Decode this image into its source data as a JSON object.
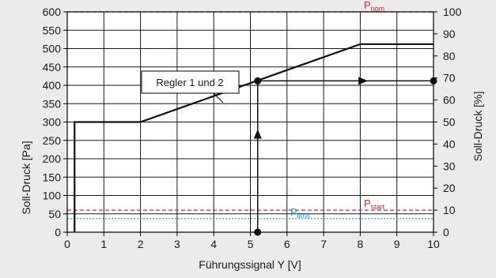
{
  "chart_data": {
    "type": "line",
    "xlabel": "Führungssignal Y [V]",
    "ylabel_left": "Soll-Druck  [Pa]",
    "ylabel_right": "Soll-Druck [%]",
    "xlim": [
      0,
      10
    ],
    "ylim_left": [
      0,
      600
    ],
    "ylim_right": [
      0,
      100
    ],
    "x_ticks": [
      "0",
      "1",
      "2",
      "3",
      "4",
      "5",
      "6",
      "7",
      "8",
      "9",
      "10"
    ],
    "y_ticks_left": [
      "0",
      "50",
      "100",
      "150",
      "200",
      "250",
      "300",
      "350",
      "400",
      "450",
      "500",
      "550",
      "600"
    ],
    "y_ticks_right": [
      "0",
      "10",
      "20",
      "30",
      "40",
      "50",
      "60",
      "70",
      "80",
      "90",
      "100"
    ],
    "grid": true,
    "series": [
      {
        "name": "Regler 1 und 2",
        "color": "#111111",
        "points": [
          [
            0.2,
            0
          ],
          [
            0.2,
            300
          ],
          [
            2,
            300
          ],
          [
            8,
            512
          ],
          [
            10,
            512
          ]
        ]
      }
    ],
    "reference_lines": [
      {
        "label": "P",
        "subscript": "nom",
        "y": 600,
        "color": "#d9263a",
        "style": "dashed"
      },
      {
        "label": "P",
        "subscript": "start",
        "y": 60,
        "color": "#d9263a",
        "style": "dashed"
      },
      {
        "label": "P",
        "subscript": "limit",
        "y": 37,
        "color": "#19a4d6",
        "style": "dotted"
      }
    ],
    "example": {
      "x": 5.2,
      "y": 412,
      "color": "#111111"
    },
    "annotation": "Regler 1 und 2"
  }
}
